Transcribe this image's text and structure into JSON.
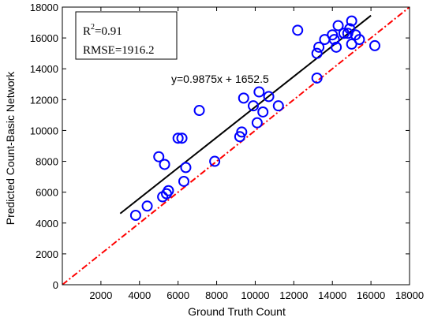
{
  "chart_data": {
    "type": "scatter",
    "xlabel": "Ground Truth Count",
    "ylabel": "Predicted Count-Basic Network",
    "xlim": [
      0,
      18000
    ],
    "ylim": [
      0,
      18000
    ],
    "xticks": [
      2000,
      4000,
      6000,
      8000,
      10000,
      12000,
      14000,
      16000,
      18000
    ],
    "yticks": [
      0,
      2000,
      4000,
      6000,
      8000,
      10000,
      12000,
      14000,
      16000,
      18000
    ],
    "grid": false,
    "colors": {
      "points": "#0000ff",
      "fit_line": "#000000",
      "identity_line": "#ff0000"
    },
    "stats_box": {
      "r2_prefix": "R",
      "r2_exp": "2",
      "r2_value": "=0.91",
      "rmse": "RMSE=1916.2"
    },
    "equation": "y=0.9875x + 1652.5",
    "fit_line": {
      "slope": 0.9875,
      "intercept": 1652.5,
      "x_range": [
        3000,
        16000
      ]
    },
    "identity_line": {
      "style": "dash-dot",
      "x_range": [
        0,
        18000
      ]
    },
    "points": [
      [
        3800,
        4500
      ],
      [
        4400,
        5100
      ],
      [
        5000,
        8300
      ],
      [
        5200,
        5700
      ],
      [
        5300,
        7800
      ],
      [
        5400,
        5900
      ],
      [
        5500,
        6100
      ],
      [
        6000,
        9500
      ],
      [
        6200,
        9500
      ],
      [
        6300,
        6700
      ],
      [
        6400,
        7600
      ],
      [
        7100,
        11300
      ],
      [
        7900,
        8000
      ],
      [
        9200,
        9600
      ],
      [
        9300,
        9900
      ],
      [
        9400,
        12100
      ],
      [
        9900,
        11600
      ],
      [
        10100,
        10500
      ],
      [
        10200,
        12500
      ],
      [
        10400,
        11200
      ],
      [
        10700,
        12200
      ],
      [
        11200,
        11600
      ],
      [
        12200,
        16500
      ],
      [
        13200,
        13400
      ],
      [
        13200,
        15000
      ],
      [
        13300,
        15400
      ],
      [
        13600,
        15900
      ],
      [
        14000,
        16200
      ],
      [
        14100,
        15900
      ],
      [
        14200,
        15400
      ],
      [
        14300,
        16800
      ],
      [
        14600,
        16300
      ],
      [
        14800,
        16300
      ],
      [
        14900,
        16600
      ],
      [
        15000,
        15600
      ],
      [
        15000,
        17100
      ],
      [
        15200,
        16200
      ],
      [
        15400,
        15900
      ],
      [
        16200,
        15500
      ]
    ]
  }
}
